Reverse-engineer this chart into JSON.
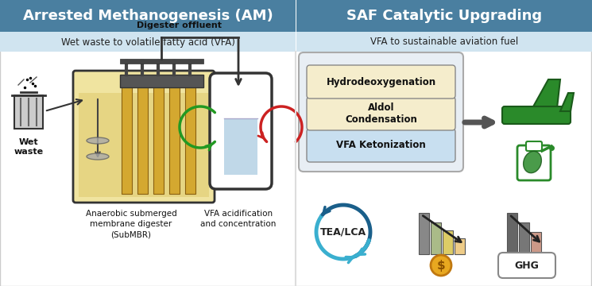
{
  "left_title": "Arrested Methanogenesis (AM)",
  "left_subtitle": "Wet waste to volatile fatty acid (VFA)",
  "right_title": "SAF Catalytic Upgrading",
  "right_subtitle": "VFA to sustainable aviation fuel",
  "header_dark_bg": "#4a7fa0",
  "header_light_bg": "#d0e4f0",
  "box1_label": "VFA Ketonization",
  "box1_color": "#c8dff0",
  "box2_label": "Aldol\nCondensation",
  "box2_color": "#f5edcc",
  "box3_label": "Hydrodeoxygenation",
  "box3_color": "#f5edcc",
  "outer_box_color": "#e0e8f0",
  "tealca_label": "TEA/LCA",
  "ghg_label": "GHG",
  "wet_waste_label": "Wet\nwaste",
  "digester_label": "Digester offluent",
  "submbr_label": "Anaerobic submerged\nmembrane digester\n(SubMBR)",
  "vfa_label": "VFA acidification\nand concentration",
  "background_color": "#ffffff",
  "panel_border": "#bbbbbb",
  "tank_fill": "#f0e4a0",
  "tank_liquid": "#e0cc70",
  "vessel_fill": "#ffffff",
  "vessel_liquid": "#c0d8e8",
  "tube_color": "#888888",
  "green_arrow": "#229922",
  "red_arrow": "#cc2222",
  "tealca_dark": "#1a5f8a",
  "tealca_light": "#3aafcf"
}
